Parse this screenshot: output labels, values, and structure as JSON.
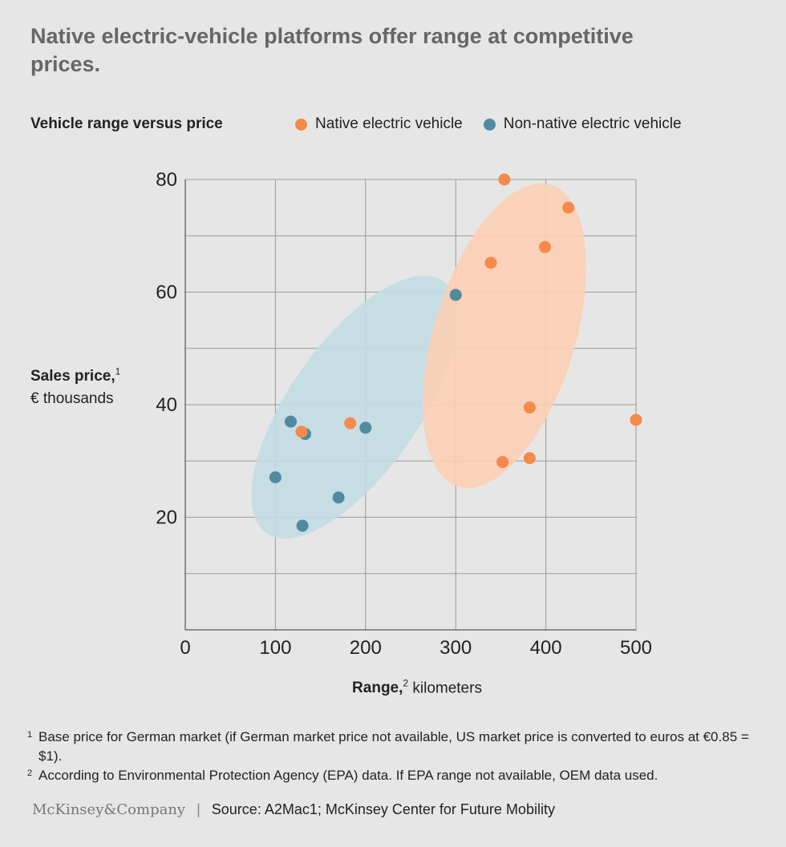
{
  "title": "Native electric-vehicle platforms offer range at competitive prices.",
  "chart_data": {
    "type": "scatter",
    "subtitle": "Vehicle range versus price",
    "xlabel": {
      "bold": "Range,",
      "sup": "2",
      "rest": " kilometers"
    },
    "ylabel": {
      "bold": "Sales price,",
      "sup": "1",
      "rest": "€ thousands"
    },
    "xlim": [
      0,
      500
    ],
    "ylim": [
      0,
      80
    ],
    "xticks": [
      0,
      100,
      200,
      300,
      400,
      500
    ],
    "yticks": [
      20,
      40,
      60,
      80
    ],
    "grid": true,
    "legend_placement": "top",
    "series": [
      {
        "name": "Native electric vehicle",
        "color": "#f58a4b",
        "cluster_color": "#fbcfb4",
        "points": [
          {
            "x": 354,
            "y": 80
          },
          {
            "x": 425,
            "y": 75
          },
          {
            "x": 399,
            "y": 68
          },
          {
            "x": 339,
            "y": 65.2
          },
          {
            "x": 382,
            "y": 39.5
          },
          {
            "x": 500,
            "y": 37.3
          },
          {
            "x": 183,
            "y": 36.7
          },
          {
            "x": 129,
            "y": 35.2
          },
          {
            "x": 352,
            "y": 29.8
          },
          {
            "x": 382,
            "y": 30.5
          }
        ]
      },
      {
        "name": "Non-native electric vehicle",
        "color": "#4f8aa1",
        "cluster_color": "#c3dbe3",
        "points": [
          {
            "x": 300,
            "y": 59.5
          },
          {
            "x": 117,
            "y": 37
          },
          {
            "x": 200,
            "y": 35.9
          },
          {
            "x": 133,
            "y": 34.8
          },
          {
            "x": 100,
            "y": 27.1
          },
          {
            "x": 170,
            "y": 23.5
          },
          {
            "x": 130,
            "y": 18.5
          }
        ]
      }
    ]
  },
  "footnotes": [
    {
      "sup": "1",
      "text": "Base price for German market (if German market price not available, US market price is converted to euros at €0.85 = $1)."
    },
    {
      "sup": "2",
      "text": "According to Environmental Protection Agency (EPA) data. If EPA range not available, OEM data used."
    }
  ],
  "logo": "McKinsey&Company",
  "separator": "|",
  "source": "Source: A2Mac1; McKinsey Center for Future Mobility"
}
